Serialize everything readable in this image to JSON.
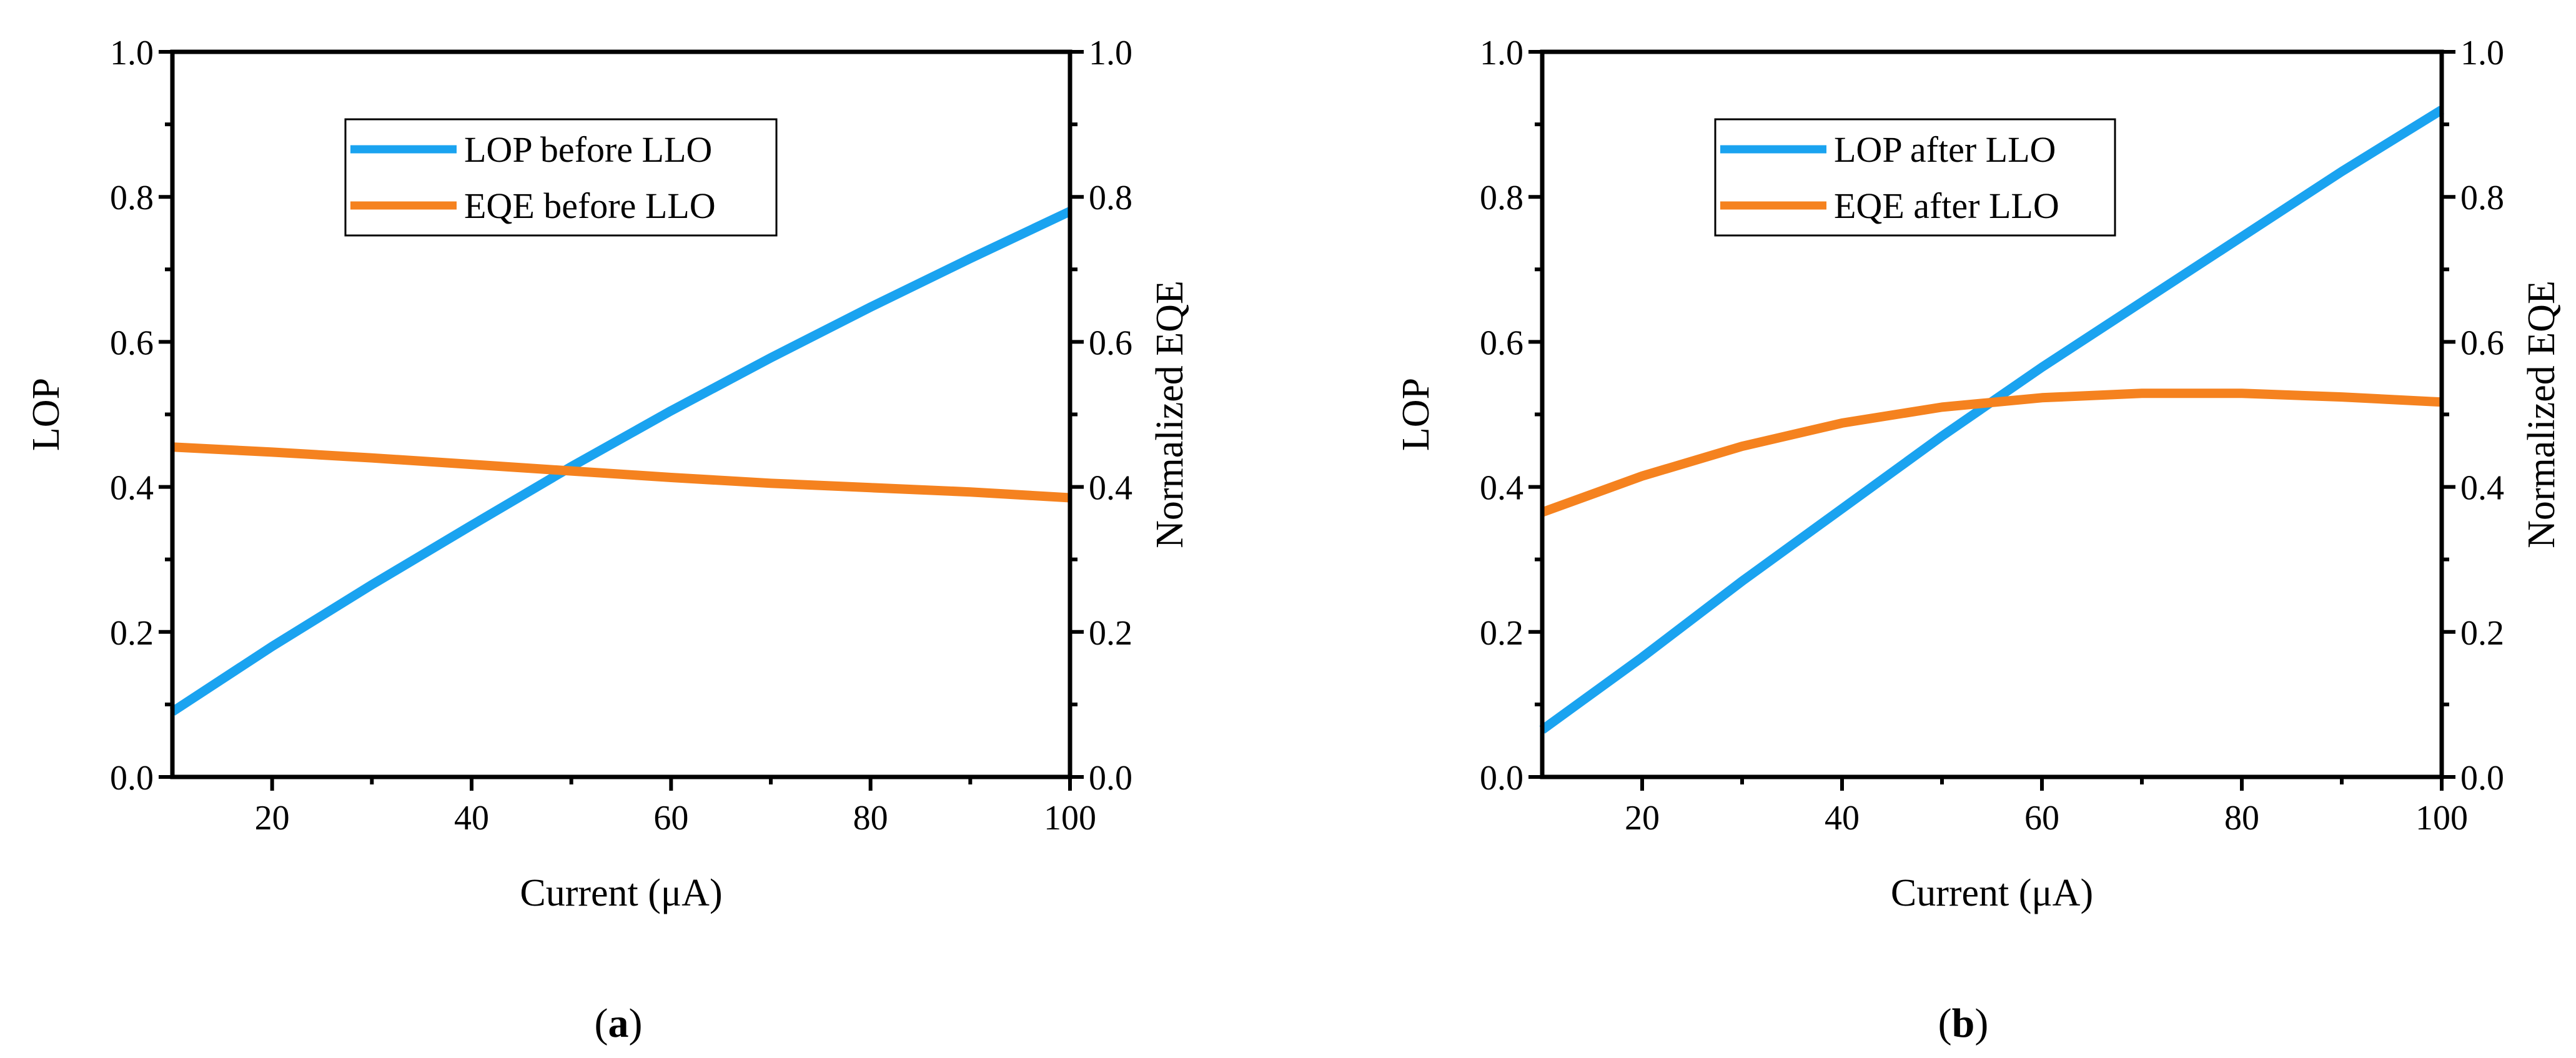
{
  "chart_data": [
    {
      "panel": "a",
      "type": "line",
      "caption_letter": "a",
      "xlabel": "Current (μA)",
      "ylabel_left": "LOP",
      "ylabel_right": "Normalized EQE",
      "xlim": [
        10,
        100
      ],
      "ylim_left": [
        0.0,
        1.0
      ],
      "ylim_right": [
        0.0,
        1.0
      ],
      "x_ticks": [
        "20",
        "40",
        "60",
        "80",
        "100"
      ],
      "y_ticks_left": [
        "0.0",
        "0.2",
        "0.4",
        "0.6",
        "0.8",
        "1.0"
      ],
      "y_ticks_right": [
        "0.0",
        "0.2",
        "0.4",
        "0.6",
        "0.8",
        "1.0"
      ],
      "legend_position": "top-center",
      "series": [
        {
          "name": "LOP before LLO",
          "axis": "left",
          "color": "#1aa3f0",
          "x": [
            10,
            20,
            30,
            40,
            50,
            60,
            70,
            80,
            90,
            100
          ],
          "y": [
            0.09,
            0.18,
            0.265,
            0.347,
            0.428,
            0.505,
            0.578,
            0.648,
            0.715,
            0.78
          ]
        },
        {
          "name": "EQE before LLO",
          "axis": "right",
          "color": "#f5821f",
          "x": [
            10,
            20,
            30,
            40,
            50,
            60,
            70,
            80,
            90,
            100
          ],
          "y": [
            0.455,
            0.448,
            0.44,
            0.431,
            0.422,
            0.413,
            0.405,
            0.399,
            0.393,
            0.385
          ]
        }
      ]
    },
    {
      "panel": "b",
      "type": "line",
      "caption_letter": "b",
      "xlabel": "Current (μA)",
      "ylabel_left": "LOP",
      "ylabel_right": "Normalized EQE",
      "xlim": [
        10,
        100
      ],
      "ylim_left": [
        0.0,
        1.0
      ],
      "ylim_right": [
        0.0,
        1.0
      ],
      "x_ticks": [
        "20",
        "40",
        "60",
        "80",
        "100"
      ],
      "y_ticks_left": [
        "0.0",
        "0.2",
        "0.4",
        "0.6",
        "0.8",
        "1.0"
      ],
      "y_ticks_right": [
        "0.0",
        "0.2",
        "0.4",
        "0.6",
        "0.8",
        "1.0"
      ],
      "legend_position": "top-center",
      "series": [
        {
          "name": "LOP after LLO",
          "axis": "left",
          "color": "#1aa3f0",
          "x": [
            10,
            20,
            30,
            40,
            50,
            60,
            70,
            80,
            90,
            100
          ],
          "y": [
            0.065,
            0.165,
            0.27,
            0.37,
            0.47,
            0.565,
            0.655,
            0.745,
            0.835,
            0.92
          ]
        },
        {
          "name": "EQE after LLO",
          "axis": "right",
          "color": "#f5821f",
          "x": [
            10,
            20,
            30,
            40,
            50,
            60,
            70,
            80,
            90,
            100
          ],
          "y": [
            0.365,
            0.415,
            0.456,
            0.488,
            0.51,
            0.523,
            0.529,
            0.529,
            0.524,
            0.517
          ]
        }
      ]
    }
  ]
}
